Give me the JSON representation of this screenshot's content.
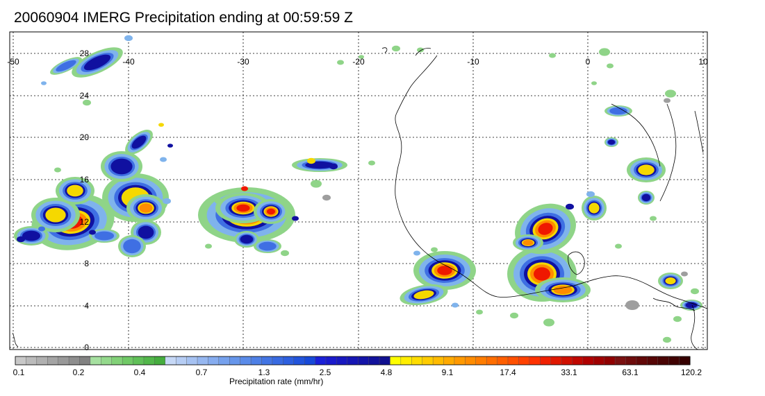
{
  "title": "20060904 IMERG Precipitation ending at 00:59:59 Z",
  "map": {
    "lon_ticks": [
      "-50",
      "-40",
      "-30",
      "-20",
      "-10",
      "0",
      "10"
    ],
    "lat_ticks": [
      "28",
      "24",
      "20",
      "16",
      "12",
      "8",
      "4",
      "0"
    ]
  },
  "colorbar": {
    "label": "Precipitation rate (mm/hr)",
    "tick_labels": [
      "0.1",
      "0.2",
      "0.4",
      "0.7",
      "1.3",
      "2.5",
      "4.8",
      "9.1",
      "17.4",
      "33.1",
      "63.1",
      "120.2"
    ],
    "colors": [
      "#c8c8c8",
      "#bbbbbb",
      "#b0b0b0",
      "#a4a4a4",
      "#999999",
      "#8e8e8e",
      "#828282",
      "#a6e0a0",
      "#94d98c",
      "#82d178",
      "#70c966",
      "#60c058",
      "#52b74a",
      "#45ad3e",
      "#c6d8f6",
      "#b6cdf4",
      "#a6c2f2",
      "#96b7f0",
      "#86acef",
      "#76a1ed",
      "#6696eb",
      "#5a8be9",
      "#4e80e6",
      "#4375e4",
      "#386ae1",
      "#2d5fdf",
      "#2254dc",
      "#1749d9",
      "#1a20d8",
      "#1a1acc",
      "#1818c0",
      "#1616b4",
      "#1414a8",
      "#12129c",
      "#101090",
      "#ffff00",
      "#ffee00",
      "#ffdd00",
      "#ffcc00",
      "#ffbb00",
      "#ffaa00",
      "#ff9900",
      "#ff8c00",
      "#ff7d00",
      "#ff6e00",
      "#ff5f00",
      "#ff5000",
      "#ff4100",
      "#ff3200",
      "#f02000",
      "#e01800",
      "#d01000",
      "#c00800",
      "#b00000",
      "#a00000",
      "#900000",
      "#7a1010",
      "#6e0c0c",
      "#620808",
      "#560606",
      "#4a0404",
      "#400202",
      "#360000"
    ]
  },
  "overlay_colors": {
    "gray": "#9e9e9e",
    "green": "#8fd488",
    "light_blue": "#7fb3ec",
    "mid_blue": "#3f6fe3",
    "dark_blue": "#1010a0",
    "yellow": "#f5d800",
    "orange": "#ff8c00",
    "red": "#ef1800",
    "dark_red": "#b00000"
  }
}
